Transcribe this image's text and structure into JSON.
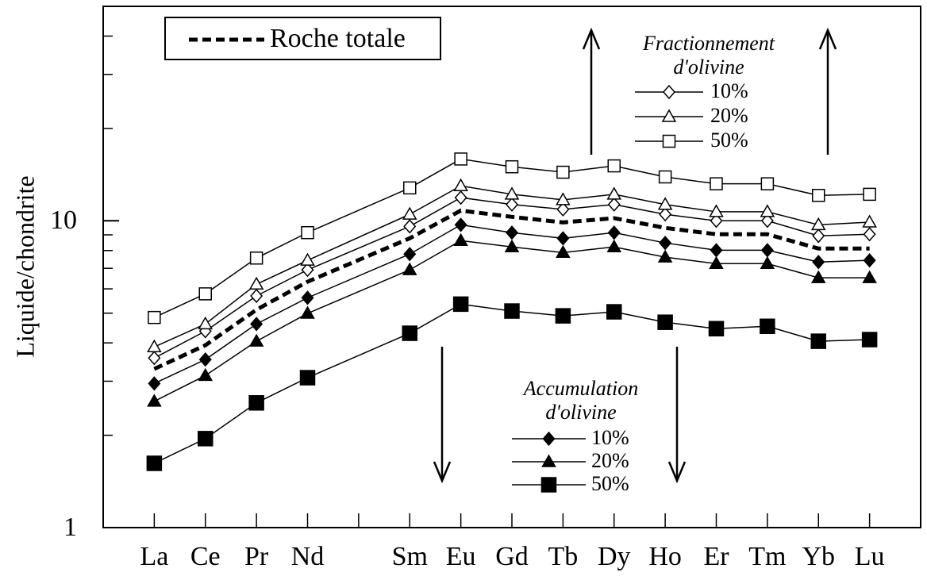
{
  "chart_data": {
    "type": "line",
    "y_label": "Liquide/chondrite",
    "x": [
      57,
      58,
      59,
      60,
      62,
      63,
      64,
      65,
      66,
      67,
      68,
      69,
      70,
      71
    ],
    "xlim": [
      56,
      72
    ],
    "xticks": [
      {
        "value": 57,
        "label": "La"
      },
      {
        "value": 58,
        "label": "Ce"
      },
      {
        "value": 59,
        "label": "Pr"
      },
      {
        "value": 60,
        "label": "Nd"
      },
      {
        "value": 61,
        "label": null
      },
      {
        "value": 62,
        "label": "Sm"
      },
      {
        "value": 63,
        "label": "Eu"
      },
      {
        "value": 64,
        "label": "Gd"
      },
      {
        "value": 65,
        "label": "Tb"
      },
      {
        "value": 66,
        "label": "Dy"
      },
      {
        "value": 67,
        "label": "Ho"
      },
      {
        "value": 68,
        "label": "Er"
      },
      {
        "value": 69,
        "label": "Tm"
      },
      {
        "value": 70,
        "label": "Yb"
      },
      {
        "value": 71,
        "label": "Lu"
      }
    ],
    "ylim": [
      1,
      50
    ],
    "y_log": true,
    "yticks": [
      1,
      10
    ],
    "y_minor_ticks": [
      2,
      3,
      4,
      5,
      6,
      7,
      8,
      9,
      20,
      30,
      40
    ],
    "legends": [
      {
        "position": "upper left",
        "boxed": true
      },
      {
        "position": "upper right",
        "title": [
          "Fractionnement",
          "d'olivine"
        ]
      },
      {
        "position": "lower center",
        "title": [
          "Accumulation",
          "d'olivine"
        ]
      }
    ],
    "series": [
      {
        "name": "Roche totale",
        "legend": 0,
        "color": "#000000",
        "dashed": true,
        "marker": "none",
        "values": [
          3.29,
          3.93,
          5.13,
          6.33,
          8.77,
          10.8,
          10.3,
          9.88,
          10.2,
          9.48,
          9.04,
          9.04,
          8.12,
          8.12
        ]
      },
      {
        "name": "10%",
        "legend": 1,
        "color": "#000000",
        "marker": "diamond-open",
        "values": [
          3.57,
          4.37,
          5.69,
          6.92,
          9.59,
          11.9,
          11.3,
          10.9,
          11.3,
          10.5,
          10.0,
          10.0,
          8.93,
          9.04
        ]
      },
      {
        "name": "20%",
        "legend": 1,
        "color": "#000000",
        "marker": "triangle-open",
        "values": [
          3.88,
          4.61,
          6.21,
          7.43,
          10.5,
          13.0,
          12.2,
          11.7,
          12.2,
          11.3,
          10.7,
          10.7,
          9.7,
          9.9
        ]
      },
      {
        "name": "50%",
        "legend": 1,
        "color": "#000000",
        "marker": "square-open",
        "values": [
          4.84,
          5.78,
          7.56,
          9.15,
          12.8,
          15.9,
          15.0,
          14.4,
          15.1,
          13.9,
          13.2,
          13.2,
          12.1,
          12.2
        ]
      },
      {
        "name": "10%",
        "legend": 2,
        "color": "#000000",
        "marker": "diamond-filled",
        "values": [
          2.95,
          3.53,
          4.61,
          5.61,
          7.79,
          9.7,
          9.15,
          8.77,
          9.15,
          8.47,
          8.02,
          8.02,
          7.34,
          7.43
        ]
      },
      {
        "name": "20%",
        "legend": 2,
        "color": "#000000",
        "marker": "triangle-filled",
        "values": [
          2.58,
          3.13,
          4.05,
          4.99,
          6.92,
          8.62,
          8.22,
          7.88,
          8.22,
          7.61,
          7.25,
          7.25,
          6.52,
          6.52
        ]
      },
      {
        "name": "50%",
        "legend": 2,
        "color": "#000000",
        "marker": "square-filled",
        "values": [
          1.62,
          1.95,
          2.55,
          3.08,
          4.3,
          5.35,
          5.08,
          4.9,
          5.05,
          4.67,
          4.45,
          4.53,
          4.05,
          4.1
        ]
      }
    ]
  }
}
